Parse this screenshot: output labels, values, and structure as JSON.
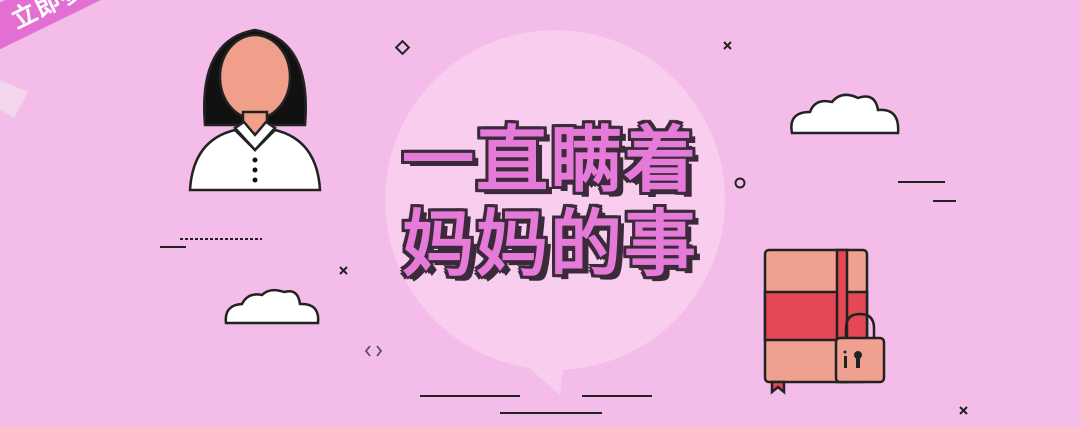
{
  "ribbon": {
    "label": "立即参与"
  },
  "title": {
    "line1": "一直瞒着",
    "line2": "妈妈的事"
  },
  "colors": {
    "background": "#f4bce8",
    "accent": "#e57ad9",
    "outline": "#3a2a3a",
    "book_red": "#e54855",
    "book_salmon": "#f0a090"
  },
  "icons": [
    "woman-avatar-icon",
    "cloud-icon",
    "notebook-icon",
    "padlock-icon",
    "diamond-sparkle-icon",
    "code-brackets-icon",
    "cross-sparkle-icon"
  ]
}
